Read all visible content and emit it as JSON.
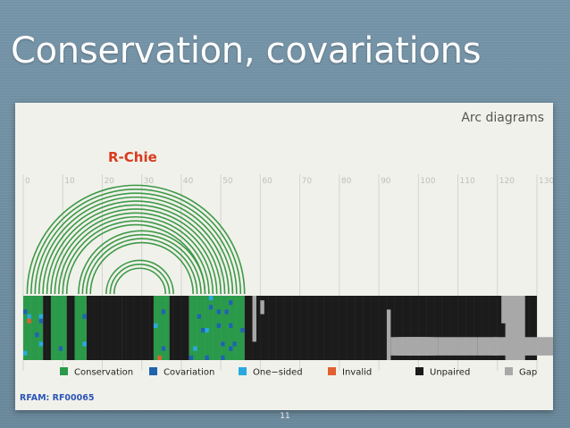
{
  "slide": {
    "title": "Conservation, covariations",
    "page_number": "11"
  },
  "panel": {
    "heading": "Arc diagrams",
    "tool_name": "R-Chie",
    "rfam_label": "RFAM: RF00065"
  },
  "axis": {
    "ticks": [
      "0",
      "10",
      "20",
      "30",
      "40",
      "50",
      "60",
      "70",
      "80",
      "90",
      "100",
      "110",
      "120",
      "130"
    ],
    "min": 0,
    "max": 130
  },
  "arcs": {
    "color": "#3d9a48",
    "groups": [
      {
        "outer_from": 1,
        "outer_to": 56,
        "count": 11
      },
      {
        "outer_from": 14,
        "outer_to": 46,
        "count": 4
      },
      {
        "outer_from": 21,
        "outer_to": 38,
        "count": 3
      }
    ]
  },
  "legend": {
    "items": [
      {
        "label": "Conservation",
        "color": "#2a9a4a"
      },
      {
        "label": "Covariation",
        "color": "#1f63b0"
      },
      {
        "label": "One−sided",
        "color": "#29a9e0"
      },
      {
        "label": "Invalid",
        "color": "#e06030"
      },
      {
        "label": "Unpaired",
        "color": "#1b1b1b"
      },
      {
        "label": "Gap",
        "color": "#a8a8a8"
      }
    ]
  }
}
